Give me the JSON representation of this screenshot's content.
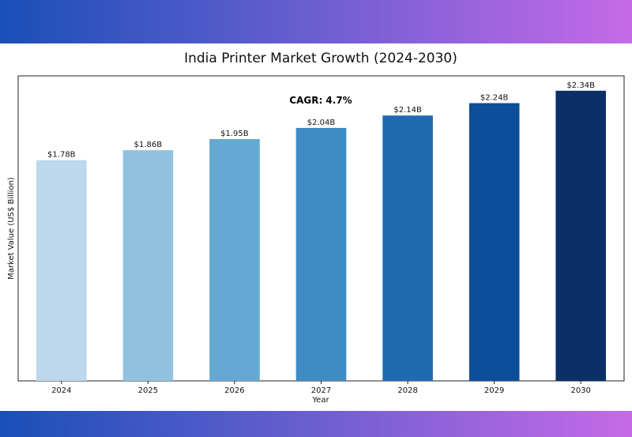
{
  "chart_data": {
    "type": "bar",
    "title": "India Printer Market Growth (2024-2030)",
    "xlabel": "Year",
    "ylabel": "Market Value (US$ Billion)",
    "categories": [
      "2024",
      "2025",
      "2026",
      "2027",
      "2028",
      "2029",
      "2030"
    ],
    "values": [
      1.78,
      1.86,
      1.95,
      2.04,
      2.14,
      2.24,
      2.34
    ],
    "data_labels": [
      "$1.78B",
      "$1.86B",
      "$1.95B",
      "$2.04B",
      "$2.14B",
      "$2.24B",
      "$2.34B"
    ],
    "bar_colors": [
      "#bdd7ec",
      "#91c2de",
      "#64a9d4",
      "#3f8bc4",
      "#1f6bb0",
      "#0c4e97",
      "#0a3066"
    ],
    "ylim": [
      0,
      2.46
    ],
    "y_ticks_shown": false,
    "grid": false,
    "annotation": "CAGR: 4.7%",
    "banner_gradient": [
      "#1a4fb8",
      "#c66ae6"
    ]
  }
}
